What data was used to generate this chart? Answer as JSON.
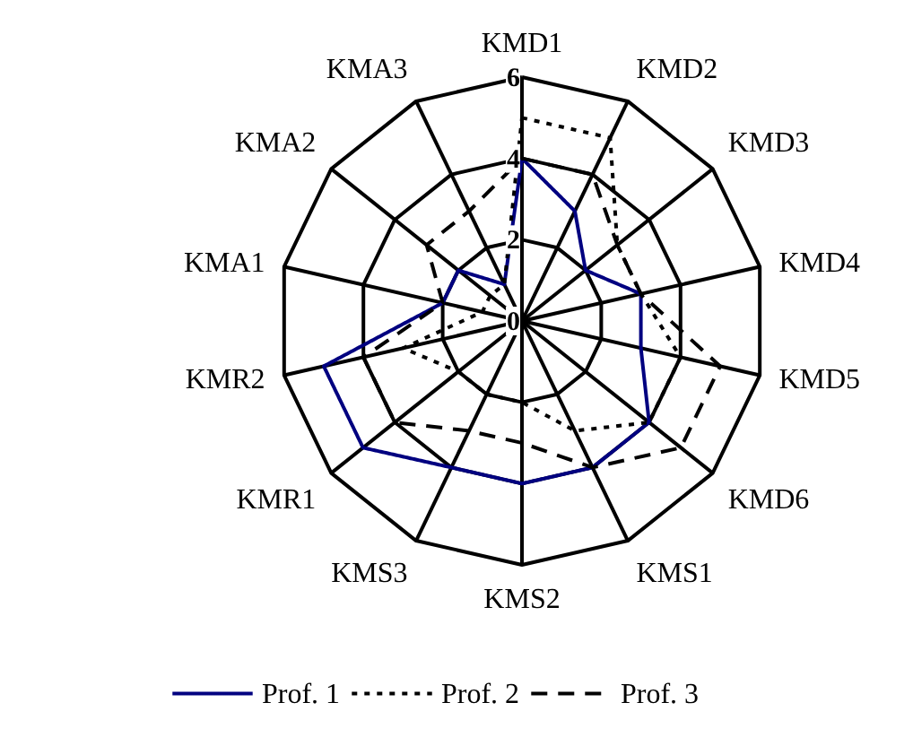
{
  "chart_data": {
    "type": "radar",
    "categories": [
      "KMD1",
      "KMD2",
      "KMD3",
      "KMD4",
      "KMD5",
      "KMD6",
      "KMS1",
      "KMS2",
      "KMS3",
      "KMR1",
      "KMR2",
      "KMA1",
      "KMA2",
      "KMA3"
    ],
    "series": [
      {
        "name": "Prof. 1",
        "color": "#000080",
        "line_style": "solid",
        "values": [
          4,
          3,
          2,
          3,
          3,
          4,
          4,
          4,
          4,
          5,
          5,
          2,
          2,
          1
        ]
      },
      {
        "name": "Prof. 2",
        "color": "#000000",
        "line_style": "dotted",
        "values": [
          5,
          5,
          3,
          3,
          4,
          4,
          3,
          2,
          2,
          2,
          3,
          1,
          1,
          1
        ]
      },
      {
        "name": "Prof. 3",
        "color": "#000000",
        "line_style": "dashed",
        "values": [
          4,
          4,
          3,
          3,
          5,
          5,
          4,
          3,
          3,
          4,
          4,
          2,
          3,
          3
        ]
      }
    ],
    "ylim": [
      0,
      6
    ],
    "yticks": [
      0,
      2,
      4,
      6
    ],
    "grid": true,
    "legend": "bottom",
    "marker": "none"
  }
}
